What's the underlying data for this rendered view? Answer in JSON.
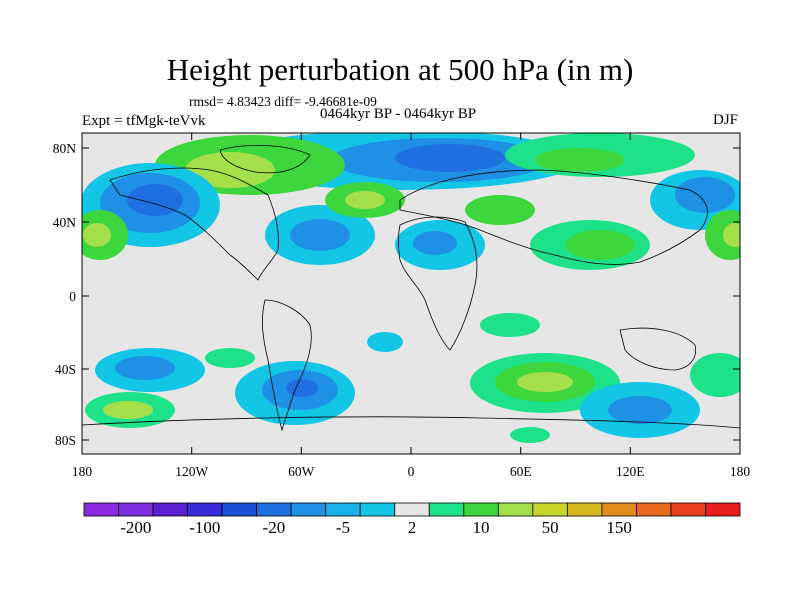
{
  "title": "Height perturbation at 500 hPa (in m)",
  "stats": "rmsd= 4.83423 diff= -9.46681e-09",
  "experiment": "Expt = tfMgk-teVvk",
  "period": "0464kyr BP - 0464kyr BP",
  "season": "DJF",
  "lat_ticks": [
    "80N",
    "40N",
    "0",
    "40S",
    "80S"
  ],
  "lon_ticks": [
    "180",
    "120W",
    "60W",
    "0",
    "60E",
    "120E",
    "180"
  ],
  "colorbar": {
    "colors": [
      "#8a2be2",
      "#7a2ee0",
      "#5a1ed0",
      "#3b2ad8",
      "#1f4fd8",
      "#1e6fe0",
      "#1e90e6",
      "#1ab0e8",
      "#14c6e6",
      "#e6e6e6",
      "#1ee28a",
      "#3dd63d",
      "#a5e04a",
      "#c6d62a",
      "#d6b81e",
      "#e08c1e",
      "#e86a1e",
      "#e8401e",
      "#e81e1e"
    ],
    "labels": [
      "-200",
      "-100",
      "-20",
      "-5",
      "2",
      "10",
      "50",
      "150"
    ]
  }
}
